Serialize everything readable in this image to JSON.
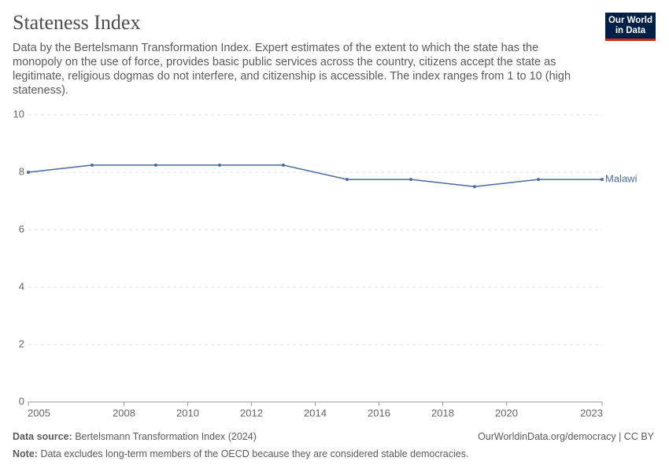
{
  "chart_data": {
    "type": "line",
    "title": "Stateness Index",
    "subtitle": "Data by the Bertelsmann Transformation Index. Expert estimates of the extent to which the state has the monopoly on the use of force, provides basic public services across the country, citizens accept the state as legitimate, religious dogmas do not interfere, and citizenship is accessible. The index ranges from 1 to 10 (high stateness).",
    "x": [
      2005,
      2007,
      2009,
      2011,
      2013,
      2015,
      2017,
      2019,
      2021,
      2023
    ],
    "series": [
      {
        "name": "Malawi",
        "color": "#4c6a9c",
        "values": [
          8,
          8.25,
          8.25,
          8.25,
          8.25,
          7.75,
          7.75,
          7.5,
          7.75,
          7.75
        ]
      }
    ],
    "xlim": [
      2005,
      2023
    ],
    "xticks": [
      2005,
      2008,
      2010,
      2012,
      2014,
      2016,
      2018,
      2020,
      2023
    ],
    "ylim": [
      0,
      10
    ],
    "yticks": [
      0,
      2,
      4,
      6,
      8,
      10
    ],
    "grid": true
  },
  "logo": {
    "line1": "Our World",
    "line2": "in Data"
  },
  "footer": {
    "source_label": "Data source:",
    "source": "Bertelsmann Transformation Index (2024)",
    "link": "OurWorldinData.org/democracy | CC BY",
    "note_label": "Note:",
    "note": "Data excludes long-term members of the OECD because they are considered stable democracies."
  }
}
